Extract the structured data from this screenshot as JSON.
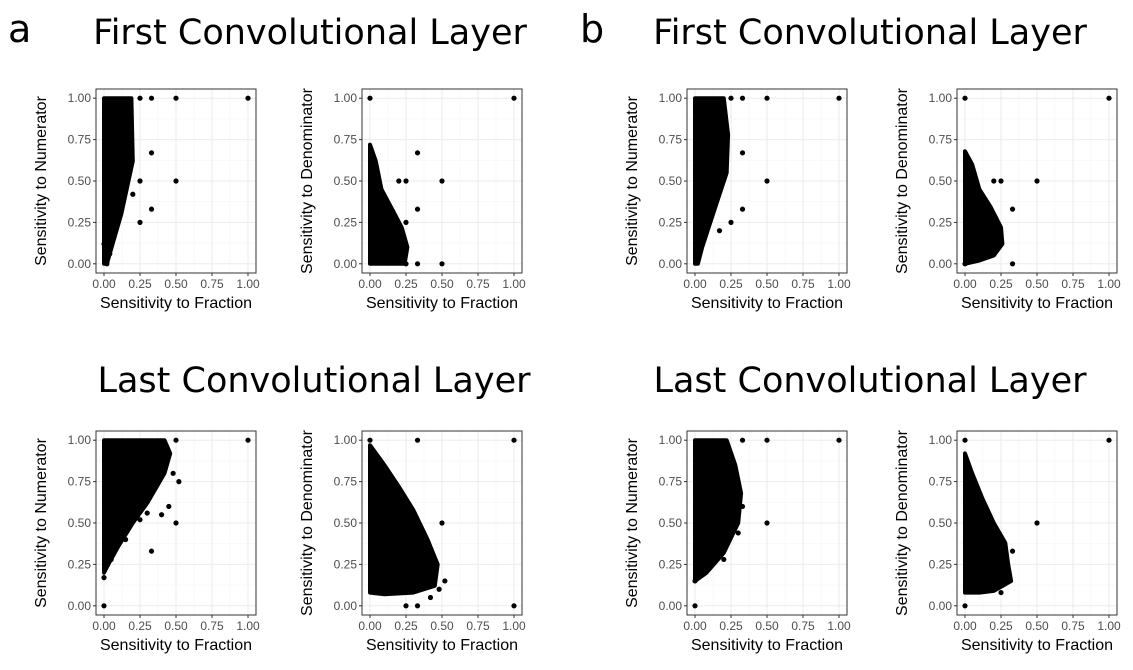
{
  "panel_labels": [
    "a",
    "b"
  ],
  "section_titles": {
    "a_top": "First Convolutional Layer",
    "b_top": "First Convolutional Layer",
    "a_bottom": "Last Convolutional Layer",
    "b_bottom": "Last Convolutional Layer"
  },
  "chart_data": [
    {
      "id": "a_first_num",
      "type": "scatter",
      "panel": "a",
      "section": "First Convolutional Layer",
      "xlabel": "Sensitivity to Fraction",
      "ylabel": "Sensitivity to Numerator",
      "xlim": [
        0,
        1
      ],
      "ylim": [
        0,
        1
      ],
      "xticks": [
        "0.00",
        "0.25",
        "0.50",
        "0.75",
        "1.00"
      ],
      "yticks": [
        "0.00",
        "0.25",
        "0.50",
        "0.75",
        "1.00"
      ],
      "cloud": [
        [
          0.0,
          0.0
        ],
        [
          0.0,
          1.0
        ],
        [
          0.19,
          1.0
        ],
        [
          0.2,
          0.62
        ],
        [
          0.12,
          0.3
        ],
        [
          0.06,
          0.12
        ],
        [
          0.02,
          0.0
        ]
      ],
      "points": [
        [
          0.25,
          1.0
        ],
        [
          0.33,
          1.0
        ],
        [
          0.5,
          1.0
        ],
        [
          1.0,
          1.0
        ],
        [
          0.33,
          0.67
        ],
        [
          0.5,
          0.5
        ],
        [
          0.25,
          0.5
        ],
        [
          0.33,
          0.33
        ],
        [
          0.25,
          0.25
        ],
        [
          0.2,
          0.42
        ],
        [
          0.02,
          0.0
        ],
        [
          0.04,
          0.06
        ],
        [
          0.0,
          0.12
        ]
      ],
      "grid": true
    },
    {
      "id": "a_first_den",
      "type": "scatter",
      "panel": "a",
      "section": "First Convolutional Layer",
      "xlabel": "Sensitivity to Fraction",
      "ylabel": "Sensitivity to Denominator",
      "xlim": [
        0,
        1
      ],
      "ylim": [
        0,
        1
      ],
      "xticks": [
        "0.00",
        "0.25",
        "0.50",
        "0.75",
        "1.00"
      ],
      "yticks": [
        "0.00",
        "0.25",
        "0.50",
        "0.75",
        "1.00"
      ],
      "cloud": [
        [
          0.0,
          0.0
        ],
        [
          0.0,
          0.72
        ],
        [
          0.04,
          0.62
        ],
        [
          0.08,
          0.45
        ],
        [
          0.16,
          0.32
        ],
        [
          0.22,
          0.22
        ],
        [
          0.26,
          0.1
        ],
        [
          0.24,
          0.0
        ]
      ],
      "points": [
        [
          0.0,
          1.0
        ],
        [
          1.0,
          1.0
        ],
        [
          0.33,
          0.67
        ],
        [
          0.5,
          0.5
        ],
        [
          0.25,
          0.5
        ],
        [
          0.33,
          0.33
        ],
        [
          0.25,
          0.25
        ],
        [
          0.5,
          0.0
        ],
        [
          0.33,
          0.0
        ],
        [
          0.25,
          0.0
        ],
        [
          0.2,
          0.5
        ]
      ],
      "grid": true
    },
    {
      "id": "b_first_num",
      "type": "scatter",
      "panel": "b",
      "section": "First Convolutional Layer",
      "xlabel": "Sensitivity to Fraction",
      "ylabel": "Sensitivity to Numerator",
      "xlim": [
        0,
        1
      ],
      "ylim": [
        0,
        1
      ],
      "xticks": [
        "0.00",
        "0.25",
        "0.50",
        "0.75",
        "1.00"
      ],
      "yticks": [
        "0.00",
        "0.25",
        "0.50",
        "0.75",
        "1.00"
      ],
      "cloud": [
        [
          0.0,
          0.0
        ],
        [
          0.0,
          1.0
        ],
        [
          0.2,
          1.0
        ],
        [
          0.23,
          0.78
        ],
        [
          0.22,
          0.55
        ],
        [
          0.14,
          0.34
        ],
        [
          0.05,
          0.1
        ],
        [
          0.02,
          0.0
        ]
      ],
      "points": [
        [
          0.25,
          1.0
        ],
        [
          0.33,
          1.0
        ],
        [
          0.5,
          1.0
        ],
        [
          1.0,
          1.0
        ],
        [
          0.33,
          0.67
        ],
        [
          0.5,
          0.5
        ],
        [
          0.33,
          0.33
        ],
        [
          0.25,
          0.25
        ],
        [
          0.17,
          0.2
        ],
        [
          0.02,
          0.02
        ]
      ],
      "grid": true
    },
    {
      "id": "b_first_den",
      "type": "scatter",
      "panel": "b",
      "section": "First Convolutional Layer",
      "xlabel": "Sensitivity to Fraction",
      "ylabel": "Sensitivity to Denominator",
      "xlim": [
        0,
        1
      ],
      "ylim": [
        0,
        1
      ],
      "xticks": [
        "0.00",
        "0.25",
        "0.50",
        "0.75",
        "1.00"
      ],
      "yticks": [
        "0.00",
        "0.25",
        "0.50",
        "0.75",
        "1.00"
      ],
      "cloud": [
        [
          0.0,
          0.0
        ],
        [
          0.0,
          0.68
        ],
        [
          0.05,
          0.6
        ],
        [
          0.1,
          0.45
        ],
        [
          0.18,
          0.34
        ],
        [
          0.25,
          0.22
        ],
        [
          0.26,
          0.12
        ],
        [
          0.2,
          0.05
        ],
        [
          0.1,
          0.02
        ]
      ],
      "points": [
        [
          0.0,
          1.0
        ],
        [
          1.0,
          1.0
        ],
        [
          0.5,
          0.5
        ],
        [
          0.33,
          0.33
        ],
        [
          0.25,
          0.5
        ],
        [
          0.2,
          0.5
        ],
        [
          0.33,
          0.0
        ],
        [
          0.0,
          0.0
        ]
      ],
      "grid": true
    },
    {
      "id": "a_last_num",
      "type": "scatter",
      "panel": "a",
      "section": "Last Convolutional Layer",
      "xlabel": "Sensitivity to Fraction",
      "ylabel": "Sensitivity to Numerator",
      "xlim": [
        0,
        1
      ],
      "ylim": [
        0,
        1
      ],
      "xticks": [
        "0.00",
        "0.25",
        "0.50",
        "0.75",
        "1.00"
      ],
      "yticks": [
        "0.00",
        "0.25",
        "0.50",
        "0.75",
        "1.00"
      ],
      "cloud": [
        [
          0.0,
          0.2
        ],
        [
          0.0,
          1.0
        ],
        [
          0.42,
          1.0
        ],
        [
          0.46,
          0.92
        ],
        [
          0.42,
          0.8
        ],
        [
          0.3,
          0.62
        ],
        [
          0.2,
          0.5
        ],
        [
          0.1,
          0.36
        ],
        [
          0.03,
          0.25
        ]
      ],
      "points": [
        [
          1.0,
          1.0
        ],
        [
          0.5,
          1.0
        ],
        [
          0.52,
          0.75
        ],
        [
          0.5,
          0.5
        ],
        [
          0.45,
          0.6
        ],
        [
          0.4,
          0.55
        ],
        [
          0.33,
          0.33
        ],
        [
          0.25,
          0.52
        ],
        [
          0.15,
          0.4
        ],
        [
          0.0,
          0.0
        ],
        [
          0.0,
          0.17
        ],
        [
          0.05,
          0.28
        ],
        [
          0.3,
          0.56
        ],
        [
          0.48,
          0.8
        ]
      ],
      "grid": true
    },
    {
      "id": "a_last_den",
      "type": "scatter",
      "panel": "a",
      "section": "Last Convolutional Layer",
      "xlabel": "Sensitivity to Fraction",
      "ylabel": "Sensitivity to Denominator",
      "xlim": [
        0,
        1
      ],
      "ylim": [
        0,
        1
      ],
      "xticks": [
        "0.00",
        "0.25",
        "0.50",
        "0.75",
        "1.00"
      ],
      "yticks": [
        "0.00",
        "0.25",
        "0.50",
        "0.75",
        "1.00"
      ],
      "cloud": [
        [
          0.0,
          0.08
        ],
        [
          0.0,
          0.97
        ],
        [
          0.1,
          0.85
        ],
        [
          0.2,
          0.72
        ],
        [
          0.3,
          0.58
        ],
        [
          0.4,
          0.4
        ],
        [
          0.47,
          0.25
        ],
        [
          0.45,
          0.12
        ],
        [
          0.3,
          0.08
        ],
        [
          0.1,
          0.07
        ]
      ],
      "points": [
        [
          0.0,
          1.0
        ],
        [
          0.33,
          1.0
        ],
        [
          1.0,
          1.0
        ],
        [
          0.5,
          0.5
        ],
        [
          0.52,
          0.15
        ],
        [
          0.48,
          0.1
        ],
        [
          0.42,
          0.05
        ],
        [
          0.33,
          0.0
        ],
        [
          0.25,
          0.0
        ],
        [
          1.0,
          0.0
        ],
        [
          0.45,
          0.2
        ]
      ],
      "grid": true
    },
    {
      "id": "b_last_num",
      "type": "scatter",
      "panel": "b",
      "section": "Last Convolutional Layer",
      "xlabel": "Sensitivity to Fraction",
      "ylabel": "Sensitivity to Numerator",
      "xlim": [
        0,
        1
      ],
      "ylim": [
        0,
        1
      ],
      "xticks": [
        "0.00",
        "0.25",
        "0.50",
        "0.75",
        "1.00"
      ],
      "yticks": [
        "0.00",
        "0.25",
        "0.50",
        "0.75",
        "1.00"
      ],
      "cloud": [
        [
          0.0,
          0.15
        ],
        [
          0.0,
          1.0
        ],
        [
          0.22,
          1.0
        ],
        [
          0.28,
          0.85
        ],
        [
          0.32,
          0.68
        ],
        [
          0.3,
          0.5
        ],
        [
          0.2,
          0.32
        ],
        [
          0.08,
          0.2
        ]
      ],
      "points": [
        [
          0.5,
          1.0
        ],
        [
          1.0,
          1.0
        ],
        [
          0.33,
          1.0
        ],
        [
          0.5,
          0.5
        ],
        [
          0.33,
          0.6
        ],
        [
          0.3,
          0.44
        ],
        [
          0.2,
          0.28
        ],
        [
          0.0,
          0.0
        ],
        [
          0.0,
          0.15
        ]
      ],
      "grid": true
    },
    {
      "id": "b_last_den",
      "type": "scatter",
      "panel": "b",
      "section": "Last Convolutional Layer",
      "xlabel": "Sensitivity to Fraction",
      "ylabel": "Sensitivity to Denominator",
      "xlim": [
        0,
        1
      ],
      "ylim": [
        0,
        1
      ],
      "xticks": [
        "0.00",
        "0.25",
        "0.50",
        "0.75",
        "1.00"
      ],
      "yticks": [
        "0.00",
        "0.25",
        "0.50",
        "0.75",
        "1.00"
      ],
      "cloud": [
        [
          0.0,
          0.08
        ],
        [
          0.0,
          0.92
        ],
        [
          0.05,
          0.8
        ],
        [
          0.12,
          0.65
        ],
        [
          0.2,
          0.5
        ],
        [
          0.28,
          0.38
        ],
        [
          0.3,
          0.25
        ],
        [
          0.32,
          0.15
        ],
        [
          0.2,
          0.09
        ],
        [
          0.1,
          0.08
        ]
      ],
      "points": [
        [
          0.0,
          1.0
        ],
        [
          1.0,
          1.0
        ],
        [
          0.5,
          0.5
        ],
        [
          0.33,
          0.33
        ],
        [
          0.3,
          0.15
        ],
        [
          0.0,
          0.0
        ],
        [
          0.25,
          0.08
        ]
      ],
      "grid": true
    }
  ]
}
